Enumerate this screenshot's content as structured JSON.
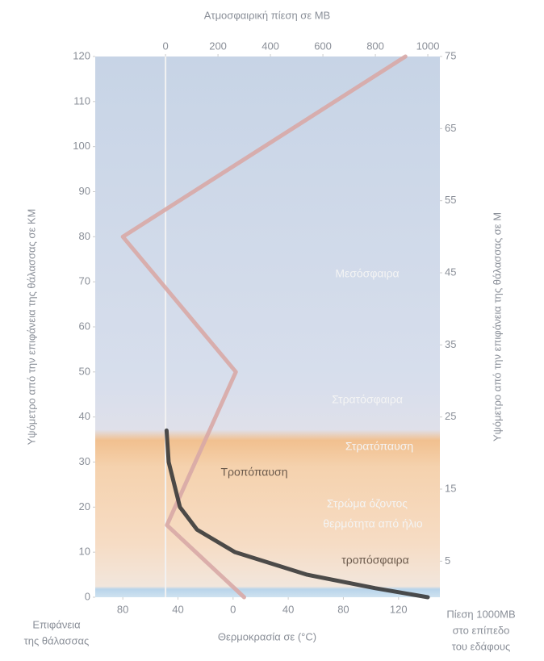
{
  "chart_data": {
    "type": "line",
    "title": "Ατμοσφαιρική πίεση σε ΜΒ",
    "y_label": "Υψόμετρο από την επιφάνεια της θάλασσας σε ΚΜ",
    "y2_label": "Υψόμετρο από την επιφάνεια της θάλασσας σε Μ",
    "x_label": "Θερμοκρασία σε (°C)",
    "ylim": [
      0,
      120
    ],
    "yticks": [
      0,
      10,
      20,
      30,
      40,
      50,
      60,
      70,
      80,
      90,
      100,
      110,
      120
    ],
    "y2lim": [
      0,
      75
    ],
    "y2ticks": [
      5,
      15,
      25,
      35,
      45,
      55,
      65,
      75
    ],
    "xlim": [
      -100,
      150
    ],
    "xticks": [
      {
        "value": -80,
        "label": "80"
      },
      {
        "value": -40,
        "label": "40"
      },
      0,
      {
        "value": 40,
        "label": "40"
      },
      80,
      120
    ],
    "x2lim": [
      -268,
      1046
    ],
    "x2ticks": [
      0,
      200,
      400,
      600,
      800,
      1000
    ],
    "series": [
      {
        "color": "#d8a9a6",
        "axis": "x",
        "altitude": [
          0,
          16,
          50,
          80,
          120
        ],
        "values": [
          8,
          -48,
          2,
          -80,
          125
        ]
      },
      {
        "color": "#3a3a3a",
        "axis": "x2",
        "altitude": [
          0,
          2,
          5,
          10,
          15,
          20,
          30,
          37
        ],
        "values": [
          1000,
          800,
          540,
          265,
          120,
          55,
          12,
          4
        ]
      }
    ],
    "annotations": [
      "Μεσόσφαιρα",
      "Στρατόσφαιρα",
      "Στρατόπαυση",
      "Τροπόπαυση",
      "Στρώμα όζοντος",
      "θερμότητα από ήλιο",
      "τροπόσφαιρα"
    ],
    "bottom_left_note": [
      "Επιφάνεια",
      "της θάλασσας"
    ],
    "bottom_right_note": [
      "Πίεση 1000ΜΒ",
      "στο επίπεδο",
      "του εδάφους"
    ]
  }
}
